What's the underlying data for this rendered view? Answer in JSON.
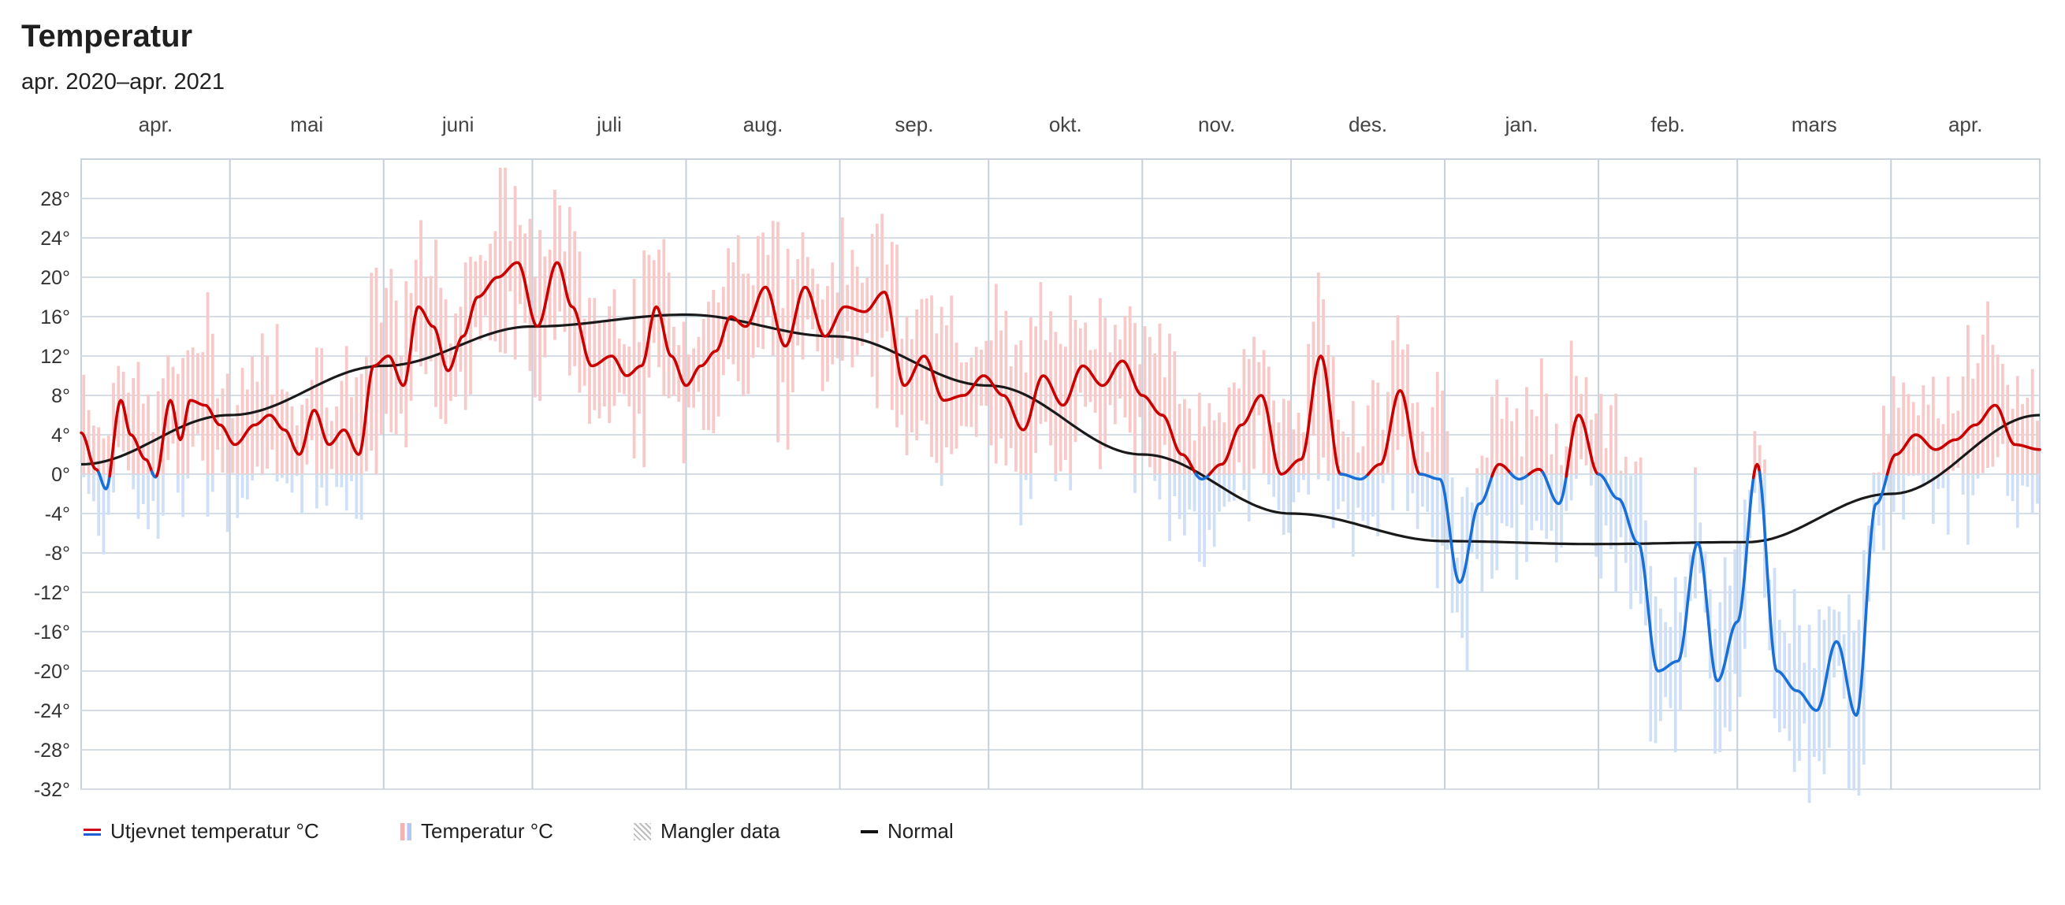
{
  "title": "Temperatur",
  "subtitle": "apr. 2020–apr. 2021",
  "colors": {
    "warm_line": "#c80000",
    "cold_line": "#1a6fd6",
    "warm_bar": "#f7c9c9",
    "cold_bar": "#cfe0f6",
    "normal_line": "#1a1a1a",
    "grid": "#d5dde6"
  },
  "legend": {
    "smoothed": "Utjevnet temperatur °C",
    "temperature": "Temperatur °C",
    "missing": "Mangler data",
    "normal": "Normal"
  },
  "chart_data": {
    "type": "line",
    "title": "Temperatur",
    "subtitle": "apr. 2020–apr. 2021",
    "xlabel": "",
    "ylabel": "",
    "months": [
      "apr.",
      "mai",
      "juni",
      "juli",
      "aug.",
      "sep.",
      "okt.",
      "nov.",
      "des.",
      "jan.",
      "feb.",
      "mars",
      "apr."
    ],
    "y_ticks": [
      28,
      24,
      20,
      16,
      12,
      8,
      4,
      0,
      -4,
      -8,
      -12,
      -16,
      -20,
      -24,
      -28,
      -32
    ],
    "y_tick_labels": [
      "28°",
      "24°",
      "20°",
      "16°",
      "12°",
      "8°",
      "4°",
      "0°",
      "-4°",
      "-8°",
      "-12°",
      "-16°",
      "-20°",
      "-24°",
      "-28°",
      "-32°"
    ],
    "ylim": [
      -32,
      32
    ],
    "x_unit": "day since 2020-04-01",
    "xlim": [
      0,
      395
    ],
    "grid": true,
    "legend_position": "bottom",
    "series": [
      {
        "name": "Utjevnet temperatur °C",
        "kind": "smoothed",
        "x": [
          0,
          3,
          5,
          8,
          10,
          13,
          15,
          18,
          20,
          22,
          25,
          28,
          31,
          35,
          38,
          41,
          44,
          47,
          50,
          53,
          56,
          59,
          62,
          65,
          68,
          71,
          74,
          77,
          80,
          84,
          88,
          92,
          96,
          99,
          103,
          107,
          110,
          113,
          116,
          119,
          122,
          125,
          128,
          131,
          134,
          138,
          142,
          146,
          150,
          154,
          158,
          162,
          166,
          170,
          174,
          178,
          182,
          186,
          190,
          194,
          198,
          202,
          206,
          210,
          214,
          218,
          222,
          226,
          230,
          234,
          238,
          242,
          246,
          250,
          254,
          258,
          262,
          266,
          270,
          274,
          278,
          282,
          286,
          290,
          294,
          298,
          302,
          306,
          310,
          314,
          318,
          322,
          326,
          330,
          334,
          338,
          342,
          346,
          350,
          354,
          358,
          362,
          366,
          370,
          374,
          378,
          382,
          386,
          390,
          395
        ],
        "y": [
          4.2,
          0.5,
          -1.5,
          7.5,
          4.0,
          1.5,
          -0.3,
          7.5,
          3.5,
          7.5,
          7.0,
          5.0,
          3.0,
          5.0,
          6.0,
          4.5,
          2.0,
          6.5,
          3.0,
          4.5,
          2.0,
          11.0,
          12.0,
          9.0,
          17.0,
          15.0,
          10.5,
          14.0,
          18.0,
          20.0,
          21.5,
          15.0,
          21.5,
          17.0,
          11.0,
          12.0,
          10.0,
          11.0,
          17.0,
          12.0,
          9.0,
          11.0,
          12.5,
          16.0,
          15.0,
          19.0,
          13.0,
          19.0,
          14.0,
          17.0,
          16.5,
          18.5,
          9.0,
          12.0,
          7.5,
          8.0,
          10.0,
          8.0,
          4.5,
          10.0,
          7.0,
          11.0,
          9.0,
          11.5,
          8.0,
          6.0,
          2.0,
          -0.5,
          1.0,
          5.0,
          8.0,
          0.0,
          1.5,
          12.0,
          0.0,
          -0.5,
          1.0,
          8.5,
          0.0,
          -0.5,
          -11.0,
          -3.0,
          1.0,
          -0.5,
          0.5,
          -3.0,
          6.0,
          0.0,
          -2.5,
          -7.0,
          -20.0,
          -19.0,
          -7.0,
          -21.0,
          -15.0,
          1.0,
          -20.0,
          -22.0,
          -24.0,
          -17.0,
          -24.5,
          -3.0,
          2.0,
          4.0,
          2.5,
          3.5,
          5.0,
          7.0,
          3.0,
          2.5
        ],
        "color_rule": "red when >= 0, blue when < 0"
      },
      {
        "name": "Temperatur °C",
        "kind": "daily_min_max_bars",
        "note": "daily max/min range bars following the smoothed series"
      },
      {
        "name": "Normal",
        "kind": "normal",
        "x": [
          0,
          30,
          61,
          91,
          122,
          152,
          183,
          214,
          244,
          275,
          305,
          336,
          365,
          395
        ],
        "y": [
          1.0,
          6.0,
          11.0,
          15.0,
          16.2,
          14.0,
          9.0,
          2.0,
          -4.0,
          -6.8,
          -7.1,
          -6.9,
          -2.0,
          6.0
        ]
      },
      {
        "name": "Mangler data",
        "kind": "missing",
        "ranges": []
      }
    ]
  }
}
